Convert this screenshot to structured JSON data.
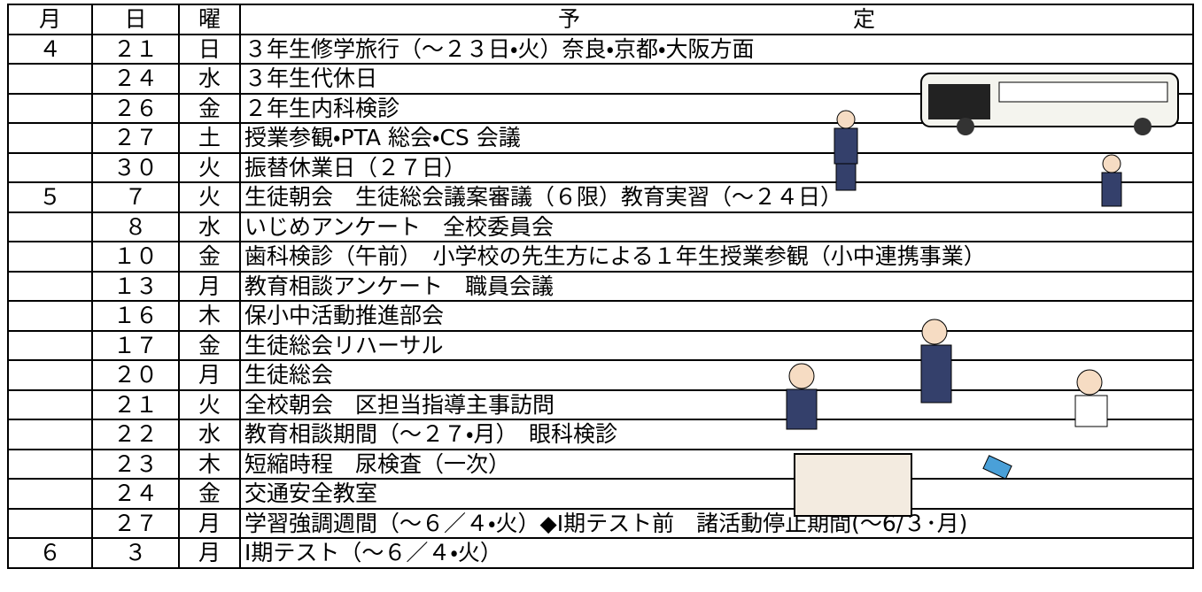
{
  "header": {
    "month": "月",
    "day": "日",
    "weekday": "曜",
    "schedule": [
      "予",
      "定"
    ]
  },
  "rows": [
    {
      "month": "４",
      "day": "２１",
      "weekday": "日",
      "event": "３年生修学旅行（～２３日・火）奈良・京都・大阪方面"
    },
    {
      "day": "２４",
      "weekday": "水",
      "event": "３年生代休日"
    },
    {
      "day": "２６",
      "weekday": "金",
      "event": "２年生内科検診"
    },
    {
      "day": "２７",
      "weekday": "土",
      "event": "授業参観・PTA 総会・CS 会議"
    },
    {
      "day": "３０",
      "weekday": "火",
      "event": "振替休業日（２７日）"
    },
    {
      "month": "５",
      "day": "７",
      "weekday": "火",
      "event": "生徒朝会　生徒総会議案審議（６限）教育実習（～２４日）"
    },
    {
      "day": "８",
      "weekday": "水",
      "event": "いじめアンケート　全校委員会"
    },
    {
      "day": "１０",
      "weekday": "金",
      "event": "歯科検診（午前）　小学校の先生方による１年生授業参観（小中連携事業）"
    },
    {
      "day": "１３",
      "weekday": "月",
      "event": "教育相談アンケート　職員会議"
    },
    {
      "day": "１６",
      "weekday": "木",
      "event": "保小中活動推進部会"
    },
    {
      "day": "１７",
      "weekday": "金",
      "event": "生徒総会リハーサル"
    },
    {
      "day": "２０",
      "weekday": "月",
      "event": "生徒総会"
    },
    {
      "day": "２１",
      "weekday": "火",
      "event": "全校朝会　区担当指導主事訪問"
    },
    {
      "day": "２２",
      "weekday": "水",
      "event": "教育相談期間（～２７・月）　眼科検診"
    },
    {
      "day": "２３",
      "weekday": "木",
      "event": "短縮時程　尿検査（一次）"
    },
    {
      "day": "２４",
      "weekday": "金",
      "event": "交通安全教室"
    },
    {
      "day": "２７",
      "weekday": "月",
      "event": "学習強調週間（～６／４・火）◆Ⅰ期テスト前　諸活動停止期間(～6/３･月)"
    },
    {
      "month": "６",
      "day": "３",
      "weekday": "月",
      "event": "Ⅰ期テスト（～６／４・火）"
    }
  ]
}
